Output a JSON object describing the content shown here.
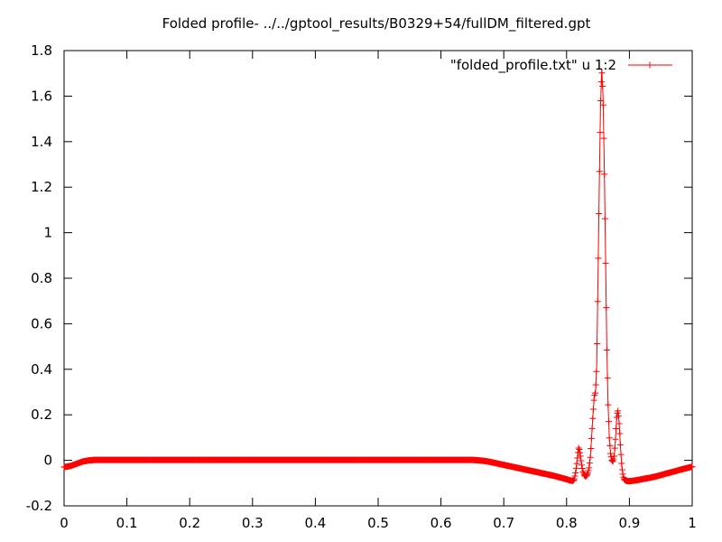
{
  "chart_data": {
    "type": "line",
    "title": "Folded profile- ../../gptool_results/B0329+54/fullDM_filtered.gpt",
    "xlabel": "",
    "ylabel": "",
    "xlim": [
      0,
      1
    ],
    "ylim": [
      -0.2,
      1.8
    ],
    "x_ticks": [
      0,
      0.1,
      0.2,
      0.3,
      0.4,
      0.5,
      0.6,
      0.7,
      0.8,
      0.9,
      1
    ],
    "x_tick_labels": [
      "0",
      "0.1",
      "0.2",
      "0.3",
      "0.4",
      "0.5",
      "0.6",
      "0.7",
      "0.8",
      "0.9",
      "1"
    ],
    "y_ticks": [
      -0.2,
      0,
      0.2,
      0.4,
      0.6,
      0.8,
      1,
      1.2,
      1.4,
      1.6,
      1.8
    ],
    "y_tick_labels": [
      "-0.2",
      "0",
      "0.2",
      "0.4",
      "0.6",
      "0.8",
      "1",
      "1.2",
      "1.4",
      "1.6",
      "1.8"
    ],
    "grid": false,
    "legend": "top-right",
    "series": [
      {
        "name": "\"folded_profile.txt\" u 1:2",
        "color": "#ff0000",
        "marker": "plus",
        "points": [
          [
            0,
            -0.03
          ],
          [
            0.01,
            -0.025
          ],
          [
            0.02,
            -0.015
          ],
          [
            0.03,
            -0.005
          ],
          [
            0.04,
            0.0
          ],
          [
            0.05,
            0.002
          ],
          [
            0.1,
            0.002
          ],
          [
            0.2,
            0.002
          ],
          [
            0.3,
            0.002
          ],
          [
            0.4,
            0.002
          ],
          [
            0.5,
            0.002
          ],
          [
            0.6,
            0.002
          ],
          [
            0.65,
            0.002
          ],
          [
            0.66,
            0.0
          ],
          [
            0.67,
            -0.003
          ],
          [
            0.68,
            -0.008
          ],
          [
            0.69,
            -0.014
          ],
          [
            0.7,
            -0.02
          ],
          [
            0.72,
            -0.032
          ],
          [
            0.74,
            -0.044
          ],
          [
            0.76,
            -0.056
          ],
          [
            0.78,
            -0.068
          ],
          [
            0.8,
            -0.083
          ],
          [
            0.805,
            -0.088
          ],
          [
            0.81,
            -0.09
          ],
          [
            0.812,
            -0.085
          ],
          [
            0.814,
            -0.06
          ],
          [
            0.816,
            -0.02
          ],
          [
            0.818,
            0.03
          ],
          [
            0.819,
            0.055
          ],
          [
            0.82,
            0.05
          ],
          [
            0.822,
            0.02
          ],
          [
            0.824,
            -0.02
          ],
          [
            0.826,
            -0.05
          ],
          [
            0.828,
            -0.065
          ],
          [
            0.83,
            -0.07
          ],
          [
            0.832,
            -0.068
          ],
          [
            0.834,
            -0.055
          ],
          [
            0.836,
            -0.03
          ],
          [
            0.838,
            0.02
          ],
          [
            0.84,
            0.11
          ],
          [
            0.842,
            0.2
          ],
          [
            0.844,
            0.28
          ],
          [
            0.846,
            0.3
          ],
          [
            0.848,
            0.42
          ],
          [
            0.85,
            0.8
          ],
          [
            0.852,
            1.2
          ],
          [
            0.854,
            1.55
          ],
          [
            0.856,
            1.72
          ],
          [
            0.858,
            1.6
          ],
          [
            0.86,
            1.3
          ],
          [
            0.862,
            0.9
          ],
          [
            0.864,
            0.5
          ],
          [
            0.866,
            0.25
          ],
          [
            0.868,
            0.1
          ],
          [
            0.87,
            0.03
          ],
          [
            0.872,
            0.0
          ],
          [
            0.874,
            -0.005
          ],
          [
            0.876,
            0.02
          ],
          [
            0.878,
            0.1
          ],
          [
            0.88,
            0.2
          ],
          [
            0.882,
            0.22
          ],
          [
            0.884,
            0.15
          ],
          [
            0.886,
            0.05
          ],
          [
            0.888,
            -0.03
          ],
          [
            0.89,
            -0.07
          ],
          [
            0.892,
            -0.085
          ],
          [
            0.895,
            -0.09
          ],
          [
            0.9,
            -0.092
          ],
          [
            0.91,
            -0.088
          ],
          [
            0.92,
            -0.083
          ],
          [
            0.93,
            -0.078
          ],
          [
            0.94,
            -0.072
          ],
          [
            0.95,
            -0.065
          ],
          [
            0.96,
            -0.057
          ],
          [
            0.97,
            -0.05
          ],
          [
            0.98,
            -0.042
          ],
          [
            0.99,
            -0.035
          ],
          [
            1.0,
            -0.028
          ]
        ]
      }
    ]
  }
}
